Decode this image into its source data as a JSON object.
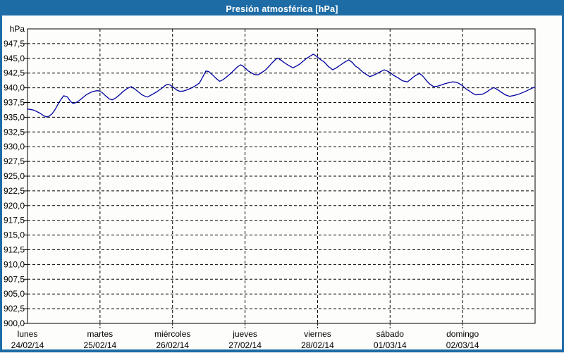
{
  "window": {
    "title": "Presión atmosférica [hPa]"
  },
  "colors": {
    "titlebar_bg": "#1e6ca6",
    "titlebar_text": "#ffffff",
    "window_border": "#1e6ca6",
    "plot_bg": "#fdfdfb",
    "axis": "#000000",
    "grid": "#000000",
    "line": "#0000a0",
    "label_text": "#000000"
  },
  "chart_data": {
    "type": "line",
    "title": "Presión atmosférica [hPa]",
    "unit_label": "hPa",
    "ylim": [
      900,
      950
    ],
    "ytick_step": 2.5,
    "grid": "dashed",
    "legend": "none",
    "yticks": [
      {
        "label": "hPa",
        "value": 950.0,
        "is_unit": true
      },
      {
        "label": "947,5",
        "value": 947.5
      },
      {
        "label": "945,0",
        "value": 945.0
      },
      {
        "label": "942,5",
        "value": 942.5
      },
      {
        "label": "940,0",
        "value": 940.0
      },
      {
        "label": "937,5",
        "value": 937.5
      },
      {
        "label": "935,0",
        "value": 935.0
      },
      {
        "label": "932,5",
        "value": 932.5
      },
      {
        "label": "930,0",
        "value": 930.0
      },
      {
        "label": "927,5",
        "value": 927.5
      },
      {
        "label": "925,0",
        "value": 925.0
      },
      {
        "label": "922,5",
        "value": 922.5
      },
      {
        "label": "920,0",
        "value": 920.0
      },
      {
        "label": "917,5",
        "value": 917.5
      },
      {
        "label": "915,0",
        "value": 915.0
      },
      {
        "label": "912,5",
        "value": 912.5
      },
      {
        "label": "910,0",
        "value": 910.0
      },
      {
        "label": "907,5",
        "value": 907.5
      },
      {
        "label": "905,0",
        "value": 905.0
      },
      {
        "label": "902,5",
        "value": 902.5
      },
      {
        "label": "900,0",
        "value": 900.0
      }
    ],
    "days": [
      {
        "name": "lunes",
        "date": "24/02/14"
      },
      {
        "name": "martes",
        "date": "25/02/14"
      },
      {
        "name": "miércoles",
        "date": "26/02/14"
      },
      {
        "name": "jueves",
        "date": "27/02/14"
      },
      {
        "name": "viernes",
        "date": "28/02/14"
      },
      {
        "name": "sábado",
        "date": "01/03/14"
      },
      {
        "name": "domingo",
        "date": "02/03/14"
      }
    ],
    "series": [
      {
        "name": "Presión atmosférica",
        "color": "#0000a0",
        "x_unit": "days_from_start",
        "points": [
          [
            0.0,
            936.4
          ],
          [
            0.09,
            936.2
          ],
          [
            0.17,
            935.7
          ],
          [
            0.22,
            935.3
          ],
          [
            0.26,
            935.05
          ],
          [
            0.3,
            935.2
          ],
          [
            0.34,
            935.6
          ],
          [
            0.38,
            936.3
          ],
          [
            0.42,
            937.2
          ],
          [
            0.46,
            938.0
          ],
          [
            0.5,
            938.65
          ],
          [
            0.55,
            938.45
          ],
          [
            0.6,
            937.6
          ],
          [
            0.63,
            937.35
          ],
          [
            0.67,
            937.5
          ],
          [
            0.71,
            937.8
          ],
          [
            0.76,
            938.3
          ],
          [
            0.81,
            938.8
          ],
          [
            0.86,
            939.15
          ],
          [
            0.9,
            939.35
          ],
          [
            0.95,
            939.5
          ],
          [
            0.98,
            939.5
          ],
          [
            1.03,
            939.2
          ],
          [
            1.08,
            938.6
          ],
          [
            1.13,
            938.1
          ],
          [
            1.17,
            937.95
          ],
          [
            1.22,
            938.3
          ],
          [
            1.27,
            938.8
          ],
          [
            1.32,
            939.4
          ],
          [
            1.38,
            939.9
          ],
          [
            1.43,
            940.2
          ],
          [
            1.48,
            939.8
          ],
          [
            1.53,
            939.3
          ],
          [
            1.58,
            938.8
          ],
          [
            1.63,
            938.5
          ],
          [
            1.66,
            938.45
          ],
          [
            1.71,
            938.8
          ],
          [
            1.78,
            939.3
          ],
          [
            1.85,
            939.9
          ],
          [
            1.9,
            940.4
          ],
          [
            1.93,
            940.6
          ],
          [
            1.97,
            940.45
          ],
          [
            2.01,
            940.1
          ],
          [
            2.06,
            939.6
          ],
          [
            2.1,
            939.4
          ],
          [
            2.15,
            939.45
          ],
          [
            2.2,
            939.65
          ],
          [
            2.25,
            939.9
          ],
          [
            2.31,
            940.3
          ],
          [
            2.37,
            940.8
          ],
          [
            2.42,
            941.9
          ],
          [
            2.46,
            942.85
          ],
          [
            2.5,
            942.75
          ],
          [
            2.55,
            942.2
          ],
          [
            2.6,
            941.6
          ],
          [
            2.65,
            941.1
          ],
          [
            2.7,
            941.4
          ],
          [
            2.75,
            941.9
          ],
          [
            2.79,
            942.3
          ],
          [
            2.85,
            943.0
          ],
          [
            2.9,
            943.6
          ],
          [
            2.94,
            943.9
          ],
          [
            2.97,
            943.7
          ],
          [
            3.0,
            943.4
          ],
          [
            3.04,
            942.9
          ],
          [
            3.08,
            942.6
          ],
          [
            3.13,
            942.25
          ],
          [
            3.18,
            942.2
          ],
          [
            3.23,
            942.6
          ],
          [
            3.28,
            943.0
          ],
          [
            3.32,
            943.5
          ],
          [
            3.37,
            944.2
          ],
          [
            3.42,
            944.8
          ],
          [
            3.45,
            945.05
          ],
          [
            3.5,
            944.65
          ],
          [
            3.55,
            944.2
          ],
          [
            3.6,
            943.8
          ],
          [
            3.66,
            943.4
          ],
          [
            3.71,
            943.7
          ],
          [
            3.75,
            944.0
          ],
          [
            3.8,
            944.5
          ],
          [
            3.85,
            945.0
          ],
          [
            3.9,
            945.4
          ],
          [
            3.94,
            945.7
          ],
          [
            3.97,
            945.5
          ],
          [
            4.01,
            945.1
          ],
          [
            4.05,
            944.7
          ],
          [
            4.09,
            944.4
          ],
          [
            4.15,
            943.6
          ],
          [
            4.21,
            943.05
          ],
          [
            4.26,
            943.4
          ],
          [
            4.32,
            943.9
          ],
          [
            4.38,
            944.4
          ],
          [
            4.43,
            944.75
          ],
          [
            4.48,
            944.3
          ],
          [
            4.52,
            943.7
          ],
          [
            4.56,
            943.4
          ],
          [
            4.62,
            942.7
          ],
          [
            4.68,
            942.2
          ],
          [
            4.72,
            941.9
          ],
          [
            4.77,
            942.1
          ],
          [
            4.83,
            942.5
          ],
          [
            4.88,
            942.8
          ],
          [
            4.92,
            943.05
          ],
          [
            4.96,
            942.85
          ],
          [
            5.0,
            942.6
          ],
          [
            5.05,
            942.1
          ],
          [
            5.11,
            941.7
          ],
          [
            5.17,
            941.2
          ],
          [
            5.24,
            941.0
          ],
          [
            5.29,
            941.5
          ],
          [
            5.34,
            942.0
          ],
          [
            5.38,
            942.3
          ],
          [
            5.41,
            942.4
          ],
          [
            5.45,
            942.0
          ],
          [
            5.49,
            941.4
          ],
          [
            5.54,
            940.7
          ],
          [
            5.6,
            940.2
          ],
          [
            5.65,
            940.25
          ],
          [
            5.69,
            940.4
          ],
          [
            5.73,
            940.6
          ],
          [
            5.79,
            940.8
          ],
          [
            5.86,
            941.0
          ],
          [
            5.91,
            940.95
          ],
          [
            5.94,
            940.8
          ],
          [
            6.0,
            940.35
          ],
          [
            6.05,
            939.8
          ],
          [
            6.1,
            939.4
          ],
          [
            6.14,
            939.05
          ],
          [
            6.18,
            938.8
          ],
          [
            6.23,
            938.85
          ],
          [
            6.27,
            938.9
          ],
          [
            6.32,
            939.2
          ],
          [
            6.38,
            939.7
          ],
          [
            6.43,
            940.05
          ],
          [
            6.48,
            939.7
          ],
          [
            6.54,
            939.2
          ],
          [
            6.59,
            938.8
          ],
          [
            6.65,
            938.55
          ],
          [
            6.71,
            938.7
          ],
          [
            6.77,
            938.9
          ],
          [
            6.82,
            939.15
          ],
          [
            6.87,
            939.4
          ],
          [
            6.92,
            939.7
          ],
          [
            6.96,
            939.95
          ],
          [
            7.0,
            940.1
          ]
        ]
      }
    ]
  }
}
